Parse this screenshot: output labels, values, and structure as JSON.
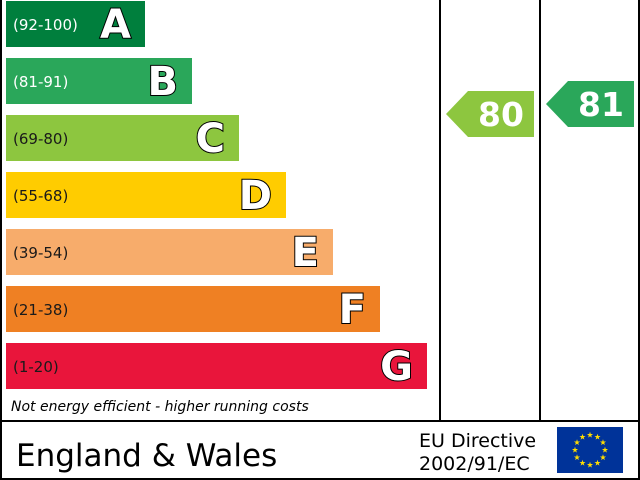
{
  "chart_data": {
    "type": "bar",
    "categories": [
      "A",
      "B",
      "C",
      "D",
      "E",
      "F",
      "G"
    ],
    "bands": [
      {
        "letter": "A",
        "range": "(92-100)",
        "color": "#007f3d",
        "range_text_color": "#ffffff"
      },
      {
        "letter": "B",
        "range": "(81-91)",
        "color": "#2aa75a",
        "range_text_color": "#ffffff"
      },
      {
        "letter": "C",
        "range": "(69-80)",
        "color": "#8dc63f",
        "range_text_color": "#1a1a1a"
      },
      {
        "letter": "D",
        "range": "(55-68)",
        "color": "#ffcc00",
        "range_text_color": "#1a1a1a"
      },
      {
        "letter": "E",
        "range": "(39-54)",
        "color": "#f7ac6b",
        "range_text_color": "#1a1a1a"
      },
      {
        "letter": "F",
        "range": "(21-38)",
        "color": "#ef8023",
        "range_text_color": "#1a1a1a"
      },
      {
        "letter": "G",
        "range": "(1-20)",
        "color": "#e9153b",
        "range_text_color": "#1a1a1a"
      }
    ],
    "footnote": "Not energy efficient - higher running costs",
    "ratings": [
      {
        "value": "80",
        "band": "C",
        "color": "#8dc63f"
      },
      {
        "value": "81",
        "band": "B",
        "color": "#2aa75a"
      }
    ]
  },
  "footer": {
    "region": "England & Wales",
    "directive_line1": "EU Directive",
    "directive_line2": "2002/91/EC",
    "flag_color": "#003399",
    "star_color": "#ffdd00"
  }
}
